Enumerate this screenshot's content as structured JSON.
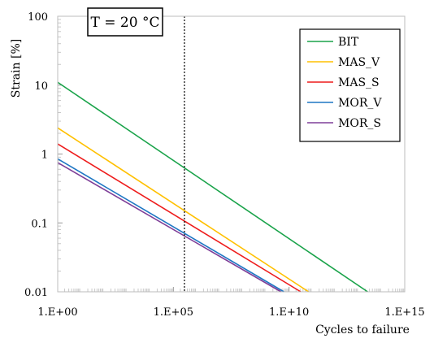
{
  "chart_data": {
    "type": "line",
    "annotation": "T = 20 °C",
    "xlabel": "Cycles to failure",
    "ylabel": "Strain [%]",
    "x_scale": "log",
    "y_scale": "log",
    "xlim": [
      1,
      1000000000000000.0
    ],
    "ylim": [
      0.01,
      100
    ],
    "x_ticks": [
      {
        "value": 1,
        "label": "1.E+00"
      },
      {
        "value": 100000,
        "label": "1.E+05"
      },
      {
        "value": 10000000000,
        "label": "1.E+10"
      },
      {
        "value": 1000000000000000.0,
        "label": "1.E+15"
      }
    ],
    "y_ticks": [
      {
        "value": 0.01,
        "label": "0.01"
      },
      {
        "value": 0.1,
        "label": "0.1"
      },
      {
        "value": 1,
        "label": "1"
      },
      {
        "value": 10,
        "label": "10"
      },
      {
        "value": 100,
        "label": "100"
      }
    ],
    "reference_line_x": 300000,
    "legend_position": "top-right",
    "grid": false,
    "series": [
      {
        "name": "BIT",
        "color": "#1aa34a",
        "x": [
          1,
          25000000000000
        ],
        "y": [
          11,
          0.01
        ]
      },
      {
        "name": "MAS_V",
        "color": "#ffc000",
        "x": [
          1,
          70000000000
        ],
        "y": [
          2.4,
          0.01
        ]
      },
      {
        "name": "MAS_S",
        "color": "#ee1c1c",
        "x": [
          1,
          32000000000
        ],
        "y": [
          1.4,
          0.01
        ]
      },
      {
        "name": "MOR_V",
        "color": "#1f77c4",
        "x": [
          1,
          6000000000
        ],
        "y": [
          0.85,
          0.01
        ]
      },
      {
        "name": "MOR_S",
        "color": "#7f3f98",
        "x": [
          1,
          4500000000
        ],
        "y": [
          0.75,
          0.01
        ]
      }
    ]
  }
}
